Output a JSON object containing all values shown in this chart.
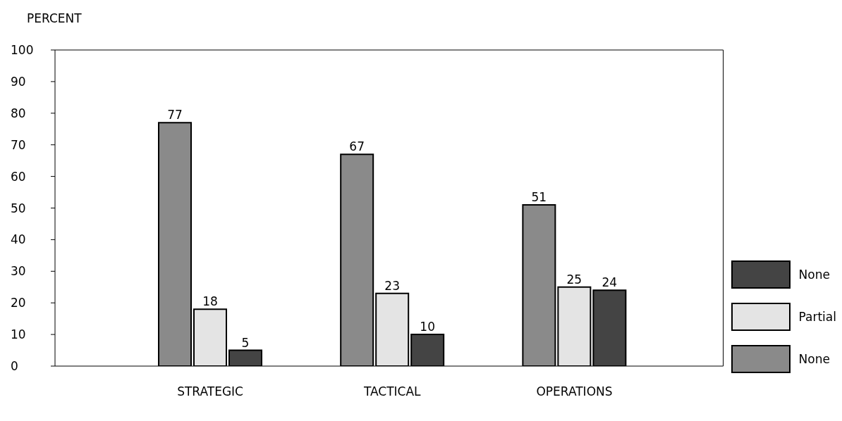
{
  "chart_data": {
    "type": "bar",
    "ylabel": "PERCENT",
    "categories": [
      "STRATEGIC",
      "TACTICAL",
      "OPERATIONS"
    ],
    "series": [
      {
        "name": "None",
        "color": "#8a8a8a",
        "values": [
          77,
          67,
          51
        ]
      },
      {
        "name": "Partial",
        "color": "#e4e4e4",
        "values": [
          18,
          23,
          25
        ]
      },
      {
        "name": "None",
        "color": "#444444",
        "values": [
          5,
          10,
          24
        ]
      }
    ],
    "ylim": [
      0,
      100
    ],
    "yticks": [
      0,
      10,
      20,
      30,
      40,
      50,
      60,
      70,
      80,
      90,
      100
    ],
    "grid": false,
    "legend": "right",
    "data_labels": true
  }
}
